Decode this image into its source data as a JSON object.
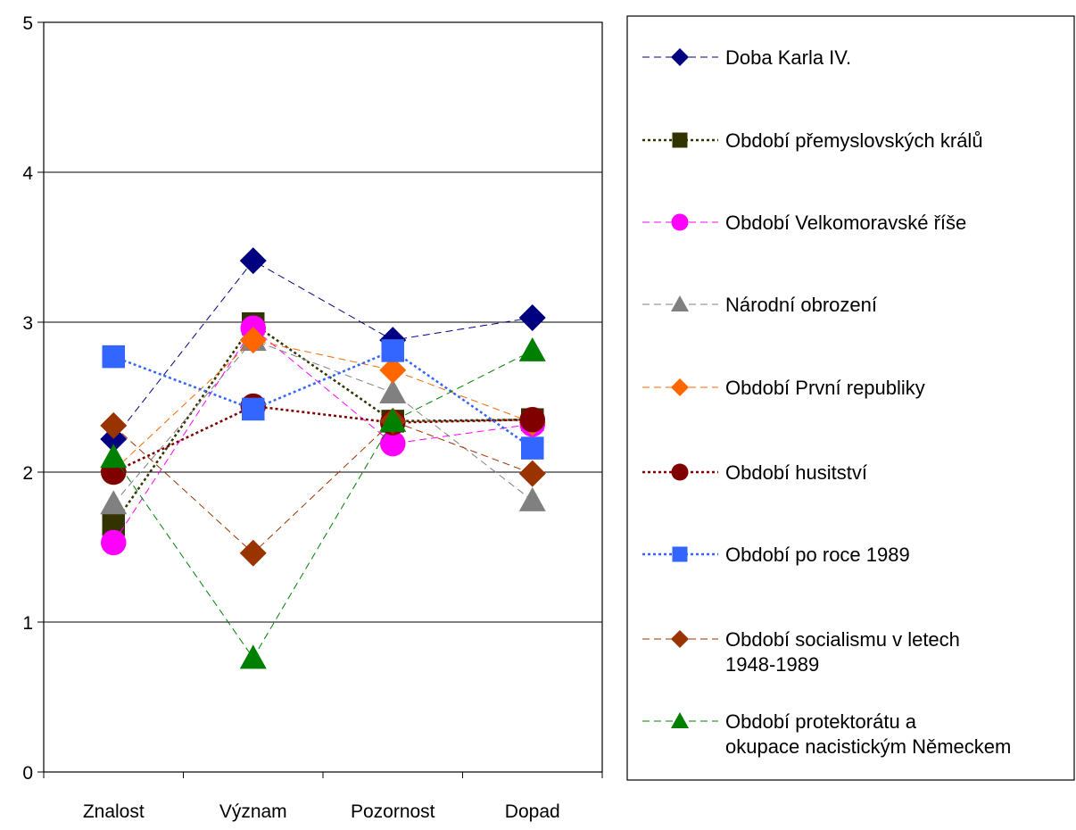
{
  "chart_data": {
    "type": "line",
    "categories": [
      "Znalost",
      "Význam",
      "Pozornost",
      "Dopad"
    ],
    "ylim": [
      0,
      5
    ],
    "yticks": [
      0,
      1,
      2,
      3,
      4,
      5
    ],
    "grid": true,
    "legend_position": "right",
    "series": [
      {
        "name": "Doba Karla IV.",
        "values": [
          2.22,
          3.41,
          2.88,
          3.03
        ],
        "color": "#000080",
        "marker": "diamond",
        "line": "dashed"
      },
      {
        "name": "Období přemyslovských králů",
        "values": [
          1.65,
          2.99,
          2.34,
          2.35
        ],
        "color": "#333300",
        "marker": "square",
        "line": "dotted"
      },
      {
        "name": "Období Velkomoravské říše",
        "values": [
          1.53,
          2.96,
          2.19,
          2.32
        ],
        "color": "#ff00ff",
        "marker": "circle",
        "line": "dashed"
      },
      {
        "name": "Národní obrození",
        "values": [
          1.79,
          2.88,
          2.53,
          1.81
        ],
        "color": "#808080",
        "marker": "triangle",
        "line": "dashed"
      },
      {
        "name": "Období První republiky",
        "values": [
          2.01,
          2.88,
          2.68,
          2.33
        ],
        "color": "#ff6600",
        "marker": "diamond",
        "line": "dashed"
      },
      {
        "name": "Období husitství",
        "values": [
          2.0,
          2.44,
          2.33,
          2.35
        ],
        "color": "#800000",
        "marker": "circle",
        "line": "dotted"
      },
      {
        "name": "Období po roce 1989",
        "values": [
          2.77,
          2.42,
          2.81,
          2.16
        ],
        "color": "#3366ff",
        "marker": "square",
        "line": "dotted"
      },
      {
        "name": "Období socialismu v letech 1948-1989",
        "values": [
          2.31,
          1.46,
          2.34,
          1.99
        ],
        "color": "#993300",
        "marker": "diamond",
        "line": "dashed"
      },
      {
        "name": "Období protektorátu a okupace nacistickým Německem",
        "values": [
          2.1,
          0.76,
          2.34,
          2.81
        ],
        "color": "#008000",
        "marker": "triangle",
        "line": "dashed"
      }
    ]
  }
}
